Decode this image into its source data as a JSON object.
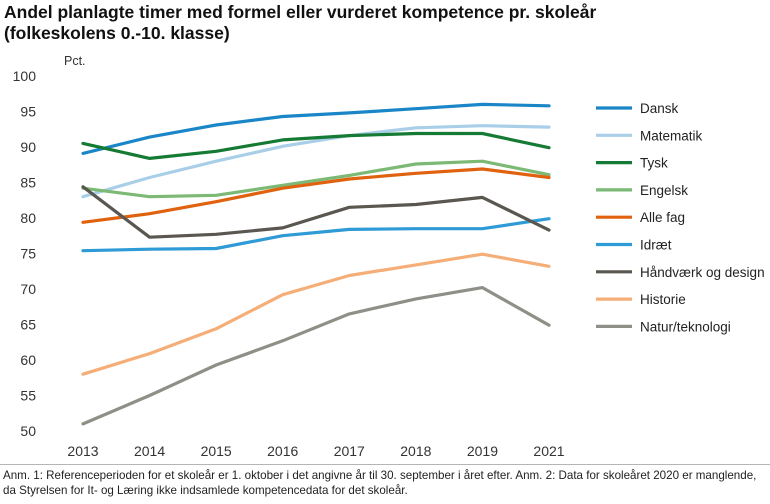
{
  "title_line1": "Andel planlagte timer med formel eller vurderet kompetence pr. skoleår",
  "title_line2": "(folkeskolens 0.-10. klasse)",
  "note": "Anm. 1: Referenceperioden for et skoleår er 1. oktober i det angivne år til 30. september i året efter. Anm. 2: Data for skoleåret 2020 er manglende, da Styrelsen for It- og Læring ikke indsamlede kompetencedata for det skoleår.",
  "chart_data": {
    "type": "line",
    "title": "Andel planlagte timer med formel eller vurderet kompetence pr. skoleår (folkeskolens 0.-10. klasse)",
    "ylabel": "Pct.",
    "xlabel": "",
    "ylim": [
      50,
      100
    ],
    "yticks": [
      "50",
      "55",
      "60",
      "65",
      "70",
      "75",
      "80",
      "85",
      "90",
      "95",
      "100"
    ],
    "categories": [
      "2013",
      "2014",
      "2015",
      "2016",
      "2017",
      "2018",
      "2019",
      "2021"
    ],
    "legend_position": "right",
    "grid": false,
    "series": [
      {
        "name": "Dansk",
        "color": "#1a86c8",
        "values": [
          89.1,
          91.4,
          93.1,
          94.3,
          94.8,
          95.4,
          96.0,
          95.8
        ]
      },
      {
        "name": "Matematik",
        "color": "#a9cfe8",
        "values": [
          83.0,
          85.7,
          88.0,
          90.1,
          91.6,
          92.7,
          93.0,
          92.8
        ]
      },
      {
        "name": "Tysk",
        "color": "#157a33",
        "values": [
          90.5,
          88.4,
          89.4,
          91.0,
          91.6,
          91.9,
          91.9,
          89.9
        ]
      },
      {
        "name": "Engelsk",
        "color": "#7bb974",
        "values": [
          84.2,
          83.0,
          83.2,
          84.6,
          86.0,
          87.6,
          88.0,
          86.1
        ]
      },
      {
        "name": "Alle fag",
        "color": "#e0620e",
        "values": [
          79.4,
          80.6,
          82.3,
          84.2,
          85.5,
          86.3,
          86.9,
          85.7
        ]
      },
      {
        "name": "Idræt",
        "color": "#2e9ad6",
        "values": [
          75.4,
          75.6,
          75.7,
          77.5,
          78.4,
          78.5,
          78.5,
          79.9
        ]
      },
      {
        "name": "Håndværk og design",
        "color": "#5a5650",
        "values": [
          84.4,
          77.3,
          77.7,
          78.6,
          81.5,
          81.9,
          82.9,
          78.3
        ]
      },
      {
        "name": "Historie",
        "color": "#f5ae78",
        "values": [
          58.0,
          60.9,
          64.4,
          69.2,
          71.9,
          73.4,
          74.9,
          73.2
        ]
      },
      {
        "name": "Natur/teknologi",
        "color": "#8f8f88",
        "values": [
          51.0,
          55.0,
          59.3,
          62.7,
          66.5,
          68.6,
          70.2,
          64.9
        ]
      }
    ]
  }
}
